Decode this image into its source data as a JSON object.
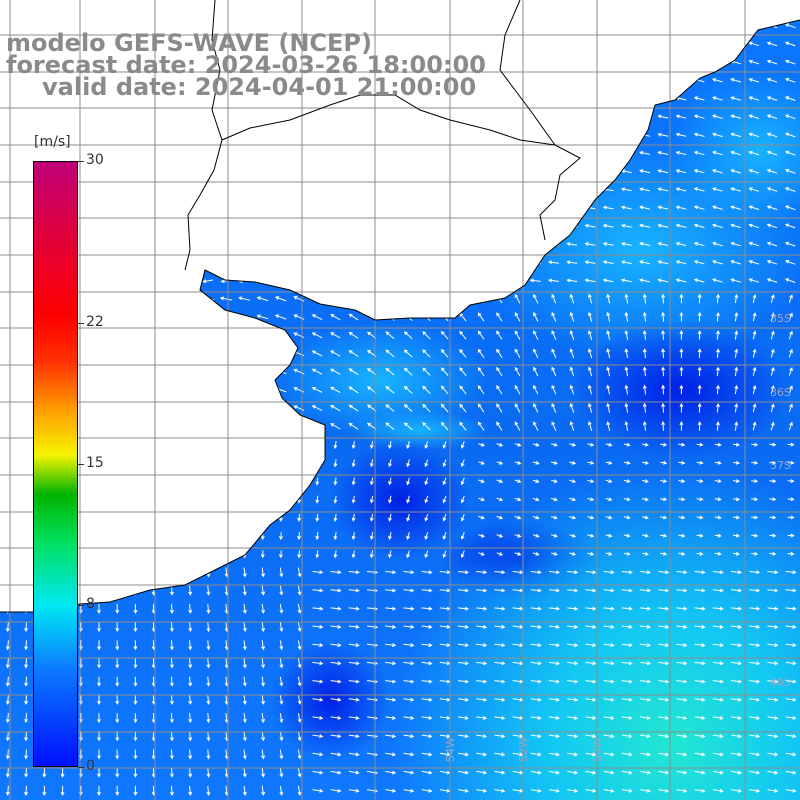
{
  "header": {
    "line1": "modelo GEFS-WAVE (NCEP)",
    "line2": "forecast date: 2024-03-26 18:00:00",
    "line3": "valid date: 2024-04-01 21:00:00"
  },
  "colorbar": {
    "unit": "[m/s]",
    "ticks": [
      "30",
      "22",
      "15",
      "8",
      "0"
    ],
    "tick_values": [
      30,
      22,
      15,
      8,
      0
    ]
  },
  "lat_labels": [
    "35S",
    "36S",
    "37S",
    "40S"
  ],
  "lon_labels": [
    "54W",
    "52W",
    "50W"
  ],
  "colors": {
    "land": "#ffffff",
    "grid": "#8c8c8c",
    "coast": "#000000",
    "arrows": "#ffffff",
    "title": "#8a8a8a"
  }
}
